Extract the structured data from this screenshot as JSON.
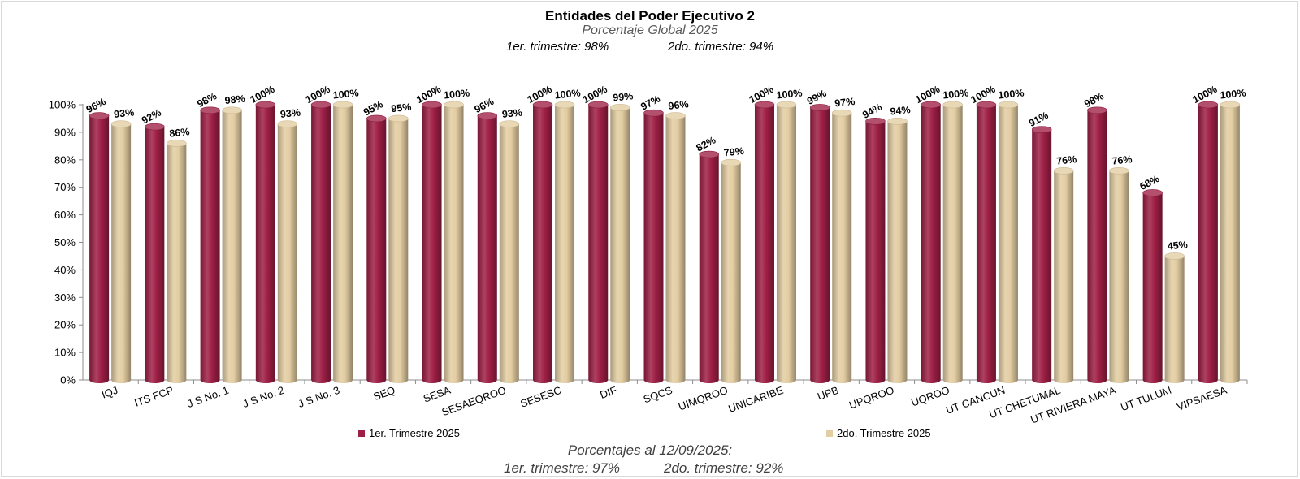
{
  "chart_data": {
    "type": "bar",
    "title": "Entidades del Poder Ejecutivo 2",
    "subtitle": "Porcentaje Global  2025",
    "quarter_summary": {
      "q1": "1er. trimestre: 98%",
      "q2": "2do. trimestre: 94%"
    },
    "footer": {
      "line1": "Porcentajes al 12/09/2025:",
      "q1": "1er. trimestre: 97%",
      "q2": "2do. trimestre: 92%"
    },
    "categories": [
      "IQJ",
      "ITS FCP",
      "J S No. 1",
      "J S No. 2",
      "J S No. 3",
      "SEQ",
      "SESA",
      "SESAEQROO",
      "SESESC",
      "DIF",
      "SQCS",
      "UIMQROO",
      "UNICARIBE",
      "UPB",
      "UPQROO",
      "UQROO",
      "UT CANCUN",
      "UT CHETUMAL",
      "UT RIVIERA MAYA",
      "UT TULUM",
      "VIPSAESA"
    ],
    "series": [
      {
        "name": "1er. Trimestre 2025",
        "color": "#9e1f45",
        "values": [
          96,
          92,
          98,
          100,
          100,
          95,
          100,
          96,
          100,
          100,
          97,
          82,
          100,
          99,
          94,
          100,
          100,
          91,
          98,
          68,
          100
        ],
        "labels": [
          "96%",
          "92%",
          "98%",
          "100%",
          "100%",
          "95%",
          "100%",
          "96%",
          "100%",
          "100%",
          "97%",
          "82%",
          "100%",
          "99%",
          "94%",
          "100%",
          "100%",
          "91%",
          "98%",
          "68%",
          "100%"
        ]
      },
      {
        "name": "2do. Trimestre 2025",
        "color": "#e3cda2",
        "values": [
          93,
          86,
          98,
          93,
          100,
          95,
          100,
          93,
          100,
          99,
          96,
          79,
          100,
          97,
          94,
          100,
          100,
          76,
          76,
          45,
          100
        ],
        "labels": [
          "93%",
          "86%",
          "98%",
          "93%",
          "100%",
          "95%",
          "100%",
          "93%",
          "100%",
          "99%",
          "96%",
          "79%",
          "100%",
          "97%",
          "94%",
          "100%",
          "100%",
          "76%",
          "76%",
          "45%",
          "100%"
        ]
      }
    ],
    "ylim": [
      0,
      100
    ],
    "yticks": [
      "0%",
      "10%",
      "20%",
      "30%",
      "40%",
      "50%",
      "60%",
      "70%",
      "80%",
      "90%",
      "100%"
    ],
    "xlabel": "",
    "ylabel": "",
    "legend_position": "bottom",
    "grid": false
  }
}
